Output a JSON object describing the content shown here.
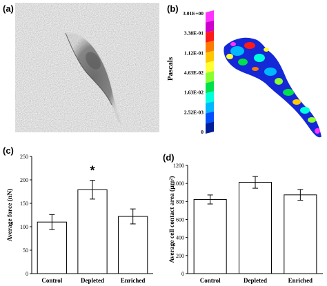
{
  "panels": {
    "a": {
      "label": "(a)"
    },
    "b": {
      "label": "(b)"
    },
    "c": {
      "label": "(c)"
    },
    "d": {
      "label": "(d)"
    }
  },
  "colorbar": {
    "axis_label": "Pascals",
    "tick_labels": [
      "3.01E+00",
      "3.38E-01",
      "1.12E-01",
      "4.63E-02",
      "1.63E-02",
      "2.52E-03",
      "0"
    ],
    "colors": [
      "#ff33ff",
      "#cc00cc",
      "#ff1a1a",
      "#ff7a00",
      "#ffc800",
      "#ffff33",
      "#88ff33",
      "#00e04a",
      "#00ffdd",
      "#00b8ff",
      "#0050ff",
      "#001e9a"
    ],
    "scale": "nonlinear"
  },
  "chart_data": [
    {
      "type": "bar",
      "panel": "c",
      "categories": [
        "Control",
        "Depleted",
        "Enriched"
      ],
      "values": [
        110,
        179,
        122
      ],
      "errors": [
        16,
        20,
        16
      ],
      "ylabel": "Average force (nN)",
      "ylim": [
        0,
        250
      ],
      "yticks": [
        0,
        50,
        100,
        150,
        200,
        250
      ],
      "annotation": {
        "text": "*",
        "category": "Depleted"
      },
      "grid": false
    },
    {
      "type": "bar",
      "panel": "d",
      "categories": [
        "Control",
        "Depleted",
        "Enriched"
      ],
      "values": [
        822,
        1012,
        873
      ],
      "errors": [
        50,
        65,
        60
      ],
      "ylabel": "Average cell contact area (μm²)",
      "ylim": [
        0,
        1200
      ],
      "yticks": [
        0,
        200,
        400,
        600,
        800,
        1000,
        1200
      ],
      "grid": false
    }
  ]
}
